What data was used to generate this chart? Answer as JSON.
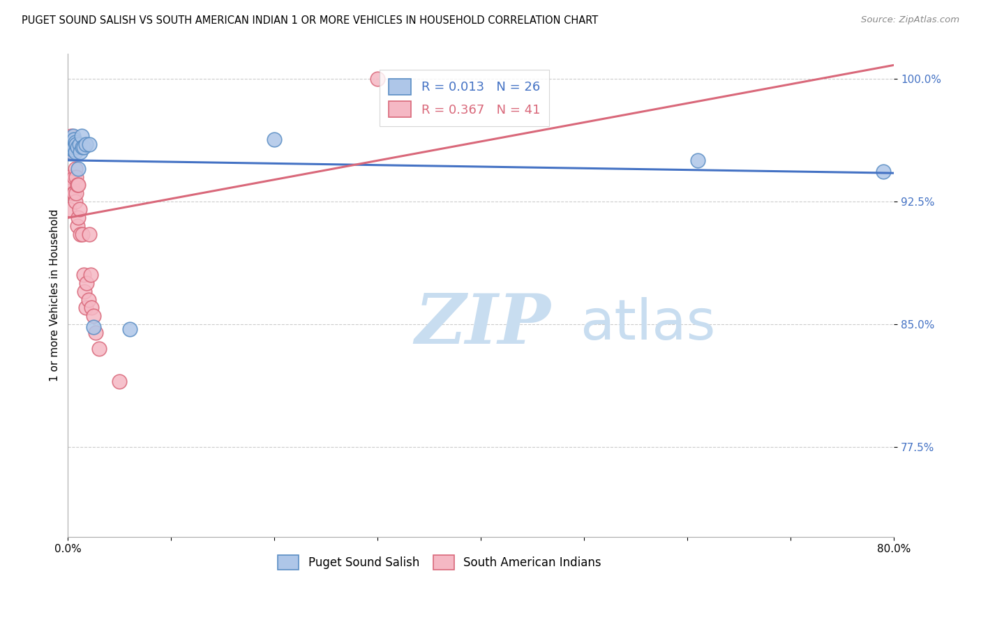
{
  "title": "PUGET SOUND SALISH VS SOUTH AMERICAN INDIAN 1 OR MORE VEHICLES IN HOUSEHOLD CORRELATION CHART",
  "source": "Source: ZipAtlas.com",
  "ylabel": "1 or more Vehicles in Household",
  "xlim": [
    0.0,
    0.8
  ],
  "ylim": [
    0.72,
    1.015
  ],
  "yticks": [
    0.775,
    0.85,
    0.925,
    1.0
  ],
  "ytick_labels": [
    "77.5%",
    "85.0%",
    "92.5%",
    "100.0%"
  ],
  "xticks": [
    0.0,
    0.1,
    0.2,
    0.3,
    0.4,
    0.5,
    0.6,
    0.7,
    0.8
  ],
  "xtick_labels": [
    "0.0%",
    "",
    "",
    "",
    "",
    "",
    "",
    "",
    "80.0%"
  ],
  "blue_R": 0.013,
  "blue_N": 26,
  "pink_R": 0.367,
  "pink_N": 41,
  "blue_color": "#aec6e8",
  "pink_color": "#f5b8c4",
  "blue_edge_color": "#5b8ec4",
  "pink_edge_color": "#d9687a",
  "blue_line_color": "#4472c4",
  "pink_line_color": "#d9687a",
  "blue_scatter_x": [
    0.003,
    0.004,
    0.004,
    0.005,
    0.005,
    0.005,
    0.006,
    0.006,
    0.006,
    0.007,
    0.007,
    0.008,
    0.009,
    0.01,
    0.011,
    0.012,
    0.013,
    0.014,
    0.015,
    0.017,
    0.021,
    0.025,
    0.06,
    0.2,
    0.61,
    0.79
  ],
  "blue_scatter_y": [
    0.955,
    0.957,
    0.963,
    0.96,
    0.957,
    0.965,
    0.96,
    0.958,
    0.963,
    0.955,
    0.961,
    0.96,
    0.958,
    0.945,
    0.96,
    0.955,
    0.965,
    0.958,
    0.958,
    0.96,
    0.96,
    0.848,
    0.847,
    0.963,
    0.95,
    0.943
  ],
  "pink_scatter_x": [
    0.001,
    0.001,
    0.002,
    0.002,
    0.003,
    0.003,
    0.003,
    0.004,
    0.004,
    0.004,
    0.005,
    0.005,
    0.005,
    0.006,
    0.006,
    0.006,
    0.007,
    0.007,
    0.007,
    0.008,
    0.008,
    0.009,
    0.009,
    0.01,
    0.01,
    0.011,
    0.012,
    0.014,
    0.015,
    0.016,
    0.017,
    0.018,
    0.02,
    0.021,
    0.022,
    0.023,
    0.025,
    0.027,
    0.03,
    0.05,
    0.3
  ],
  "pink_scatter_y": [
    0.94,
    0.92,
    0.96,
    0.94,
    0.965,
    0.955,
    0.93,
    0.96,
    0.955,
    0.935,
    0.96,
    0.955,
    0.93,
    0.955,
    0.94,
    0.93,
    0.96,
    0.945,
    0.925,
    0.94,
    0.93,
    0.935,
    0.91,
    0.935,
    0.915,
    0.92,
    0.905,
    0.905,
    0.88,
    0.87,
    0.86,
    0.875,
    0.865,
    0.905,
    0.88,
    0.86,
    0.855,
    0.845,
    0.835,
    0.815,
    1.0
  ],
  "watermark_zip": "ZIP",
  "watermark_atlas": "atlas",
  "watermark_color_zip": "#c8ddf0",
  "watermark_color_atlas": "#c8ddf0",
  "legend_label_blue": "Puget Sound Salish",
  "legend_label_pink": "South American Indians"
}
